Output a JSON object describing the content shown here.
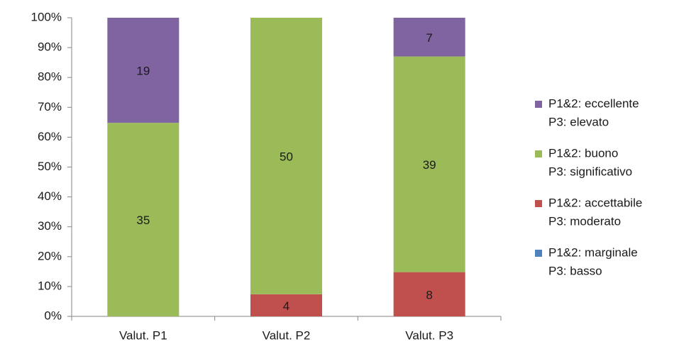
{
  "chart_data": {
    "type": "bar",
    "stacking": "percent",
    "categories": [
      "Valut. P1",
      "Valut. P2",
      "Valut. P3"
    ],
    "series": [
      {
        "name": [
          "P1&2: marginale",
          "P3: basso"
        ],
        "color": "#4f81bd",
        "values": [
          0,
          0,
          0
        ]
      },
      {
        "name": [
          "P1&2: accettabile",
          "P3: moderato"
        ],
        "color": "#c0504d",
        "values": [
          0,
          4,
          8
        ]
      },
      {
        "name": [
          "P1&2: buono",
          "P3: significativo"
        ],
        "color": "#9bbb59",
        "values": [
          35,
          50,
          39
        ]
      },
      {
        "name": [
          "P1&2: eccellente",
          "P3: elevato"
        ],
        "color": "#8064a2",
        "values": [
          19,
          0,
          7
        ]
      }
    ],
    "ylim": [
      0,
      100
    ],
    "yticks": [
      {
        "value": 0,
        "label": "0%"
      },
      {
        "value": 10,
        "label": "10%"
      },
      {
        "value": 20,
        "label": "20%"
      },
      {
        "value": 30,
        "label": "30%"
      },
      {
        "value": 40,
        "label": "40%"
      },
      {
        "value": 50,
        "label": "50%"
      },
      {
        "value": 60,
        "label": "60%"
      },
      {
        "value": 70,
        "label": "70%"
      },
      {
        "value": 80,
        "label": "80%"
      },
      {
        "value": 90,
        "label": "90%"
      },
      {
        "value": 100,
        "label": "100%"
      }
    ],
    "legend": "right"
  }
}
